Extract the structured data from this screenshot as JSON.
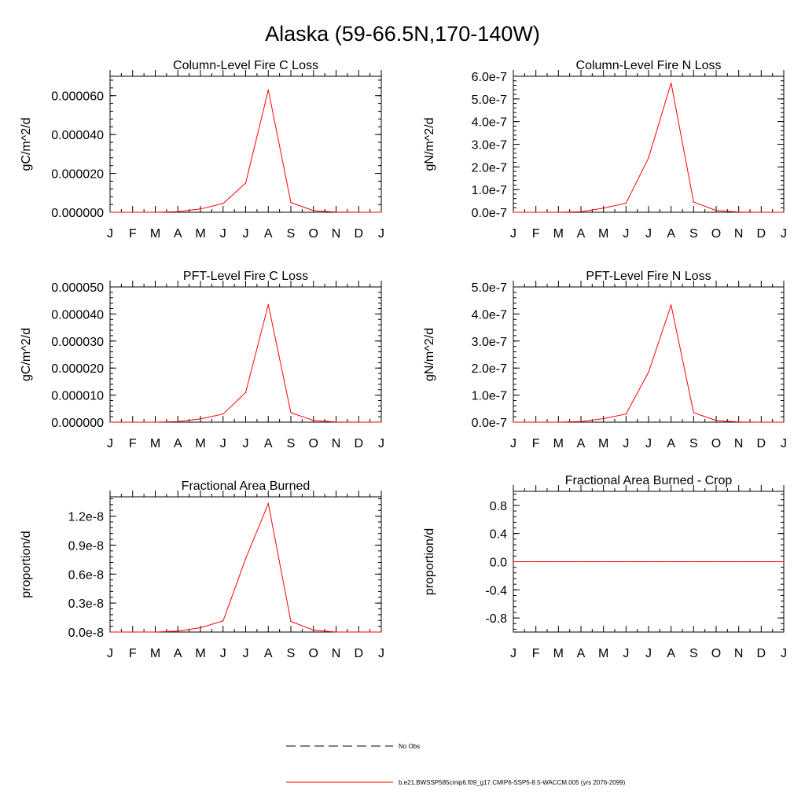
{
  "figure_title": "Alaska (59-66.5N,170-140W)",
  "colors": {
    "model_line": "#ff0000",
    "obs_line": "#000000",
    "axis": "#000000"
  },
  "chart_data": [
    {
      "type": "line",
      "title": "Column-Level Fire C Loss",
      "ylabel": "gC/m^2/d",
      "categories": [
        "J",
        "F",
        "M",
        "A",
        "M",
        "J",
        "J",
        "A",
        "S",
        "O",
        "N",
        "D",
        "J"
      ],
      "ylim": [
        0,
        7e-05
      ],
      "yticks": [
        0,
        2e-05,
        4e-05,
        6e-05
      ],
      "ytick_labels": [
        "0.000000",
        "0.000020",
        "0.000040",
        "0.000060"
      ],
      "series": [
        {
          "name": "b.e21.BWSSP585cmip6.f09_g17.CMIP6-SSP5-8.5-WACCM.005 (yrs 2076-2099)",
          "values": [
            0,
            0,
            0,
            3e-07,
            1.7e-06,
            4.5e-06,
            1.5e-05,
            6.3e-05,
            5e-06,
            8e-07,
            1e-07,
            0,
            0
          ]
        }
      ]
    },
    {
      "type": "line",
      "title": "Column-Level Fire N Loss",
      "ylabel": "gN/m^2/d",
      "categories": [
        "J",
        "F",
        "M",
        "A",
        "M",
        "J",
        "J",
        "A",
        "S",
        "O",
        "N",
        "D",
        "J"
      ],
      "ylim": [
        0,
        6e-07
      ],
      "yticks": [
        0,
        1e-07,
        2e-07,
        3e-07,
        4e-07,
        5e-07,
        6e-07
      ],
      "ytick_labels": [
        "0.0e-7",
        "1.0e-7",
        "2.0e-7",
        "3.0e-7",
        "4.0e-7",
        "5.0e-7",
        "6.0e-7"
      ],
      "series": [
        {
          "name": "b.e21.BWSSP585cmip6.f09_g17.CMIP6-SSP5-8.5-WACCM.005 (yrs 2076-2099)",
          "values": [
            0,
            0,
            0,
            2e-09,
            1.8e-08,
            4e-08,
            2.4e-07,
            5.7e-07,
            4.5e-08,
            8e-09,
            1e-09,
            0,
            0
          ]
        }
      ]
    },
    {
      "type": "line",
      "title": "PFT-Level Fire C Loss",
      "ylabel": "gC/m^2/d",
      "categories": [
        "J",
        "F",
        "M",
        "A",
        "M",
        "J",
        "J",
        "A",
        "S",
        "O",
        "N",
        "D",
        "J"
      ],
      "ylim": [
        0,
        5e-05
      ],
      "yticks": [
        0,
        1e-05,
        2e-05,
        3e-05,
        4e-05,
        5e-05
      ],
      "ytick_labels": [
        "0.000000",
        "0.000010",
        "0.000020",
        "0.000030",
        "0.000040",
        "0.000050"
      ],
      "series": [
        {
          "name": "b.e21.BWSSP585cmip6.f09_g17.CMIP6-SSP5-8.5-WACCM.005 (yrs 2076-2099)",
          "values": [
            0,
            0,
            0,
            2e-07,
            1.2e-06,
            3e-06,
            1.1e-05,
            4.35e-05,
            3.5e-06,
            6e-07,
            1e-07,
            0,
            0
          ]
        }
      ]
    },
    {
      "type": "line",
      "title": "PFT-Level Fire N Loss",
      "ylabel": "gN/m^2/d",
      "categories": [
        "J",
        "F",
        "M",
        "A",
        "M",
        "J",
        "J",
        "A",
        "S",
        "O",
        "N",
        "D",
        "J"
      ],
      "ylim": [
        0,
        5e-07
      ],
      "yticks": [
        0,
        1e-07,
        2e-07,
        3e-07,
        4e-07,
        5e-07
      ],
      "ytick_labels": [
        "0.0e-7",
        "1.0e-7",
        "2.0e-7",
        "3.0e-7",
        "4.0e-7",
        "5.0e-7"
      ],
      "series": [
        {
          "name": "b.e21.BWSSP585cmip6.f09_g17.CMIP6-SSP5-8.5-WACCM.005 (yrs 2076-2099)",
          "values": [
            0,
            0,
            0,
            2e-09,
            1.3e-08,
            3e-08,
            1.85e-07,
            4.33e-07,
            3.5e-08,
            6e-09,
            1e-09,
            0,
            0
          ]
        }
      ]
    },
    {
      "type": "line",
      "title": "Fractional Area Burned",
      "ylabel": "proportion/d",
      "categories": [
        "J",
        "F",
        "M",
        "A",
        "M",
        "J",
        "J",
        "A",
        "S",
        "O",
        "N",
        "D",
        "J"
      ],
      "ylim": [
        0,
        1.4e-08
      ],
      "yticks": [
        0,
        3e-09,
        6e-09,
        9e-09,
        1.2e-08
      ],
      "ytick_labels": [
        "0.0e-8",
        "0.3e-8",
        "0.6e-8",
        "0.9e-8",
        "1.2e-8"
      ],
      "series": [
        {
          "name": "b.e21.BWSSP585cmip6.f09_g17.CMIP6-SSP5-8.5-WACCM.005 (yrs 2076-2099)",
          "values": [
            0,
            0,
            0,
            1e-10,
            4.5e-10,
            1.15e-09,
            7.6e-09,
            1.33e-08,
            1.1e-09,
            2e-10,
            0,
            0,
            0
          ]
        }
      ]
    },
    {
      "type": "line",
      "title": "Fractional Area Burned - Crop",
      "ylabel": "proportion/d",
      "categories": [
        "J",
        "F",
        "M",
        "A",
        "M",
        "J",
        "J",
        "A",
        "S",
        "O",
        "N",
        "D",
        "J"
      ],
      "ylim": [
        -1,
        1
      ],
      "yticks": [
        -0.8,
        -0.4,
        0,
        0.4,
        0.8
      ],
      "ytick_labels": [
        "-0.8",
        "-0.4",
        "0.0",
        "0.4",
        "0.8"
      ],
      "series": [
        {
          "name": "b.e21.BWSSP585cmip6.f09_g17.CMIP6-SSP5-8.5-WACCM.005 (yrs 2076-2099)",
          "values": [
            0,
            0,
            0,
            0,
            0,
            0,
            0,
            0,
            0,
            0,
            0,
            0,
            0
          ]
        }
      ]
    }
  ],
  "legend": {
    "entries": [
      {
        "label": "No Obs",
        "style": "dashed"
      },
      {
        "label": "b.e21.BWSSP585cmip6.f09_g17.CMIP6-SSP5-8.5-WACCM.005 (yrs 2076-2099)",
        "style": "solid"
      }
    ]
  }
}
